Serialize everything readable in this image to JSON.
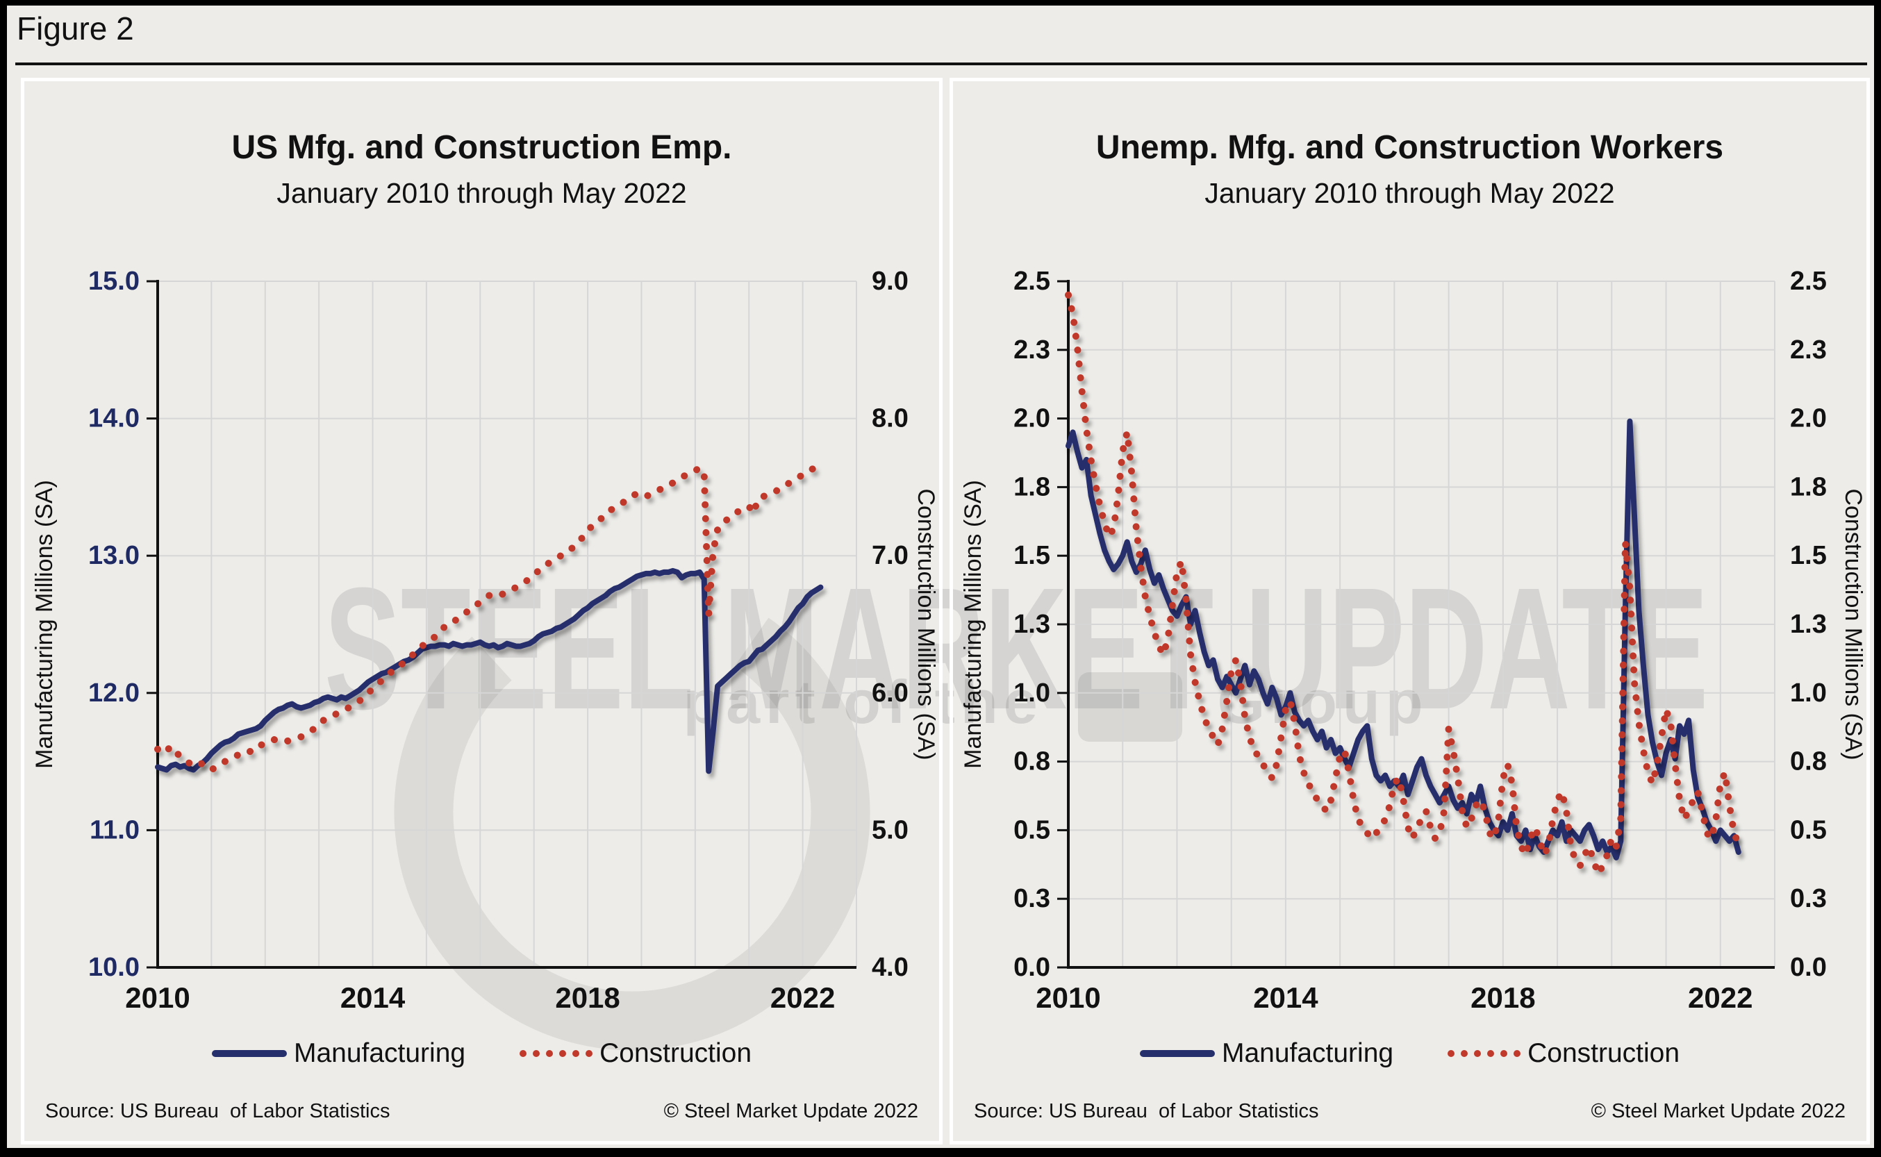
{
  "figure_label": "Figure 2",
  "watermark": {
    "line1": "STEEL MARKET UPDATE",
    "line2_prefix": "part of the",
    "line2_suffix": "Group"
  },
  "colors": {
    "manufacturing_navy": "#252F6C",
    "construction_red": "#C0392B",
    "axis_black": "#111111",
    "gridline_gray": "#D6D6D6",
    "navy_tick_label": "#1F2A63",
    "page_background": "#EDECE9"
  },
  "chart_data": [
    {
      "type": "line",
      "title": "US Mfg. and Construction Emp.",
      "subtitle": "January 2010 through May 2022",
      "x_start_year": 2010,
      "x_points_per_year": 12,
      "x_range": [
        2010,
        2023
      ],
      "x_tick_values": [
        2010,
        2014,
        2018,
        2022
      ],
      "x_tick_labels": [
        "2010",
        "2014",
        "2018",
        "2022"
      ],
      "left_axis": {
        "title": "Manufacturing Millions (SA)",
        "range": [
          10.0,
          15.0
        ],
        "tick_values": [
          10,
          11,
          12,
          13,
          14,
          15
        ],
        "tick_labels": [
          "10.0",
          "11.0",
          "12.0",
          "13.0",
          "14.0",
          "15.0"
        ],
        "label_color": "#1F2A63"
      },
      "right_axis": {
        "title": "Construction Millions (SA)",
        "range": [
          4.0,
          9.0
        ],
        "tick_values": [
          4,
          5,
          6,
          7,
          8,
          9
        ],
        "tick_labels": [
          "4.0",
          "5.0",
          "6.0",
          "7.0",
          "8.0",
          "9.0"
        ],
        "label_color": "#111111"
      },
      "legend": [
        "Manufacturing",
        "Construction"
      ],
      "source": "Source: US Bureau  of Labor Statistics",
      "copyright": "© Steel Market Update 2022",
      "series": [
        {
          "name": "Manufacturing",
          "axis": "left",
          "style": "solid",
          "color": "#252F6C",
          "values": [
            11.46,
            11.45,
            11.44,
            11.47,
            11.48,
            11.46,
            11.47,
            11.45,
            11.44,
            11.47,
            11.49,
            11.52,
            11.56,
            11.59,
            11.62,
            11.64,
            11.65,
            11.67,
            11.7,
            11.71,
            11.72,
            11.73,
            11.74,
            11.76,
            11.8,
            11.83,
            11.86,
            11.88,
            11.89,
            11.91,
            11.92,
            11.9,
            11.89,
            11.9,
            11.91,
            11.93,
            11.94,
            11.96,
            11.97,
            11.96,
            11.95,
            11.97,
            11.96,
            11.98,
            12.0,
            12.02,
            12.05,
            12.08,
            12.1,
            12.12,
            12.14,
            12.15,
            12.17,
            12.19,
            12.21,
            12.23,
            12.24,
            12.26,
            12.29,
            12.32,
            12.33,
            12.34,
            12.34,
            12.35,
            12.35,
            12.34,
            12.36,
            12.35,
            12.34,
            12.35,
            12.35,
            12.36,
            12.37,
            12.35,
            12.34,
            12.35,
            12.33,
            12.34,
            12.36,
            12.35,
            12.34,
            12.34,
            12.35,
            12.36,
            12.38,
            12.41,
            12.43,
            12.44,
            12.45,
            12.47,
            12.48,
            12.5,
            12.52,
            12.54,
            12.57,
            12.6,
            12.62,
            12.65,
            12.67,
            12.69,
            12.71,
            12.74,
            12.76,
            12.77,
            12.79,
            12.81,
            12.83,
            12.85,
            12.86,
            12.87,
            12.87,
            12.88,
            12.87,
            12.88,
            12.88,
            12.89,
            12.88,
            12.84,
            12.86,
            12.87,
            12.87,
            12.88,
            12.83,
            11.43,
            11.72,
            12.05,
            12.08,
            12.11,
            12.14,
            12.17,
            12.2,
            12.22,
            12.23,
            12.27,
            12.31,
            12.32,
            12.35,
            12.38,
            12.41,
            12.45,
            12.48,
            12.52,
            12.57,
            12.62,
            12.65,
            12.7,
            12.73,
            12.75,
            12.77
          ]
        },
        {
          "name": "Construction",
          "axis": "right",
          "style": "dotted",
          "color": "#C0392B",
          "values": [
            5.59,
            5.56,
            5.58,
            5.61,
            5.57,
            5.54,
            5.51,
            5.49,
            5.48,
            5.5,
            5.48,
            5.45,
            5.44,
            5.46,
            5.48,
            5.5,
            5.52,
            5.53,
            5.55,
            5.57,
            5.58,
            5.57,
            5.6,
            5.62,
            5.63,
            5.65,
            5.66,
            5.65,
            5.64,
            5.65,
            5.66,
            5.67,
            5.68,
            5.7,
            5.72,
            5.74,
            5.77,
            5.8,
            5.82,
            5.83,
            5.85,
            5.87,
            5.88,
            5.9,
            5.92,
            5.94,
            5.97,
            6.0,
            6.03,
            6.06,
            6.09,
            6.12,
            6.15,
            6.17,
            6.2,
            6.22,
            6.25,
            6.28,
            6.31,
            6.34,
            6.37,
            6.39,
            6.41,
            6.45,
            6.48,
            6.49,
            6.52,
            6.54,
            6.56,
            6.59,
            6.61,
            6.64,
            6.66,
            6.68,
            6.71,
            6.72,
            6.71,
            6.72,
            6.74,
            6.75,
            6.77,
            6.79,
            6.81,
            6.83,
            6.86,
            6.89,
            6.92,
            6.94,
            6.96,
            6.98,
            7.0,
            7.02,
            7.04,
            7.07,
            7.1,
            7.14,
            7.18,
            7.22,
            7.24,
            7.27,
            7.31,
            7.33,
            7.35,
            7.37,
            7.39,
            7.42,
            7.44,
            7.45,
            7.45,
            7.43,
            7.45,
            7.47,
            7.48,
            7.5,
            7.52,
            7.53,
            7.55,
            7.57,
            7.59,
            7.61,
            7.62,
            7.64,
            7.6,
            6.57,
            7.03,
            7.19,
            7.24,
            7.26,
            7.29,
            7.31,
            7.33,
            7.34,
            7.36,
            7.31,
            7.41,
            7.43,
            7.44,
            7.45,
            7.47,
            7.49,
            7.51,
            7.53,
            7.55,
            7.57,
            7.59,
            7.61,
            7.63,
            7.64,
            7.66
          ]
        }
      ]
    },
    {
      "type": "line",
      "title": "Unemp. Mfg. and Construction Workers",
      "subtitle": "January 2010 through May 2022",
      "x_start_year": 2010,
      "x_points_per_year": 12,
      "x_range": [
        2010,
        2023
      ],
      "x_tick_values": [
        2010,
        2014,
        2018,
        2022
      ],
      "x_tick_labels": [
        "2010",
        "2014",
        "2018",
        "2022"
      ],
      "left_axis": {
        "title": "Manufacturing Millions (SA)",
        "range": [
          0.0,
          2.5
        ],
        "tick_values": [
          0,
          0.25,
          0.5,
          0.75,
          1.0,
          1.25,
          1.5,
          1.75,
          2.0,
          2.25,
          2.5
        ],
        "tick_labels": [
          "0.0",
          "0.3",
          "0.5",
          "0.8",
          "1.0",
          "1.3",
          "1.5",
          "1.8",
          "2.0",
          "2.3",
          "2.5"
        ],
        "label_color": "#111111"
      },
      "right_axis": {
        "title": "Construction Millions (SA)",
        "range": [
          0.0,
          2.5
        ],
        "tick_values": [
          0,
          0.25,
          0.5,
          0.75,
          1.0,
          1.25,
          1.5,
          1.75,
          2.0,
          2.25,
          2.5
        ],
        "tick_labels": [
          "0.0",
          "0.3",
          "0.5",
          "0.8",
          "1.0",
          "1.3",
          "1.5",
          "1.8",
          "2.0",
          "2.3",
          "2.5"
        ],
        "label_color": "#111111"
      },
      "legend": [
        "Manufacturing",
        "Construction"
      ],
      "source": "Source: US Bureau  of Labor Statistics",
      "copyright": "© Steel Market Update 2022",
      "series": [
        {
          "name": "Manufacturing",
          "axis": "left",
          "style": "solid",
          "color": "#252F6C",
          "values": [
            1.9,
            1.95,
            1.88,
            1.82,
            1.85,
            1.72,
            1.65,
            1.58,
            1.52,
            1.48,
            1.45,
            1.47,
            1.5,
            1.55,
            1.48,
            1.44,
            1.47,
            1.52,
            1.45,
            1.4,
            1.43,
            1.38,
            1.34,
            1.3,
            1.28,
            1.32,
            1.35,
            1.25,
            1.3,
            1.22,
            1.15,
            1.1,
            1.12,
            1.05,
            1.02,
            1.06,
            1.03,
            1.0,
            1.05,
            1.1,
            1.03,
            1.08,
            1.05,
            1.0,
            0.96,
            1.02,
            0.98,
            0.92,
            0.95,
            1.0,
            0.93,
            0.9,
            0.88,
            0.9,
            0.86,
            0.83,
            0.86,
            0.8,
            0.83,
            0.78,
            0.8,
            0.76,
            0.73,
            0.78,
            0.83,
            0.86,
            0.88,
            0.76,
            0.7,
            0.68,
            0.7,
            0.66,
            0.68,
            0.66,
            0.7,
            0.63,
            0.68,
            0.73,
            0.76,
            0.7,
            0.66,
            0.63,
            0.6,
            0.63,
            0.66,
            0.61,
            0.58,
            0.6,
            0.56,
            0.63,
            0.6,
            0.66,
            0.58,
            0.53,
            0.5,
            0.48,
            0.53,
            0.5,
            0.56,
            0.48,
            0.46,
            0.5,
            0.43,
            0.48,
            0.44,
            0.42,
            0.46,
            0.5,
            0.48,
            0.53,
            0.46,
            0.5,
            0.48,
            0.46,
            0.5,
            0.52,
            0.48,
            0.43,
            0.46,
            0.42,
            0.44,
            0.4,
            0.46,
            1.3,
            1.99,
            1.65,
            1.3,
            1.1,
            0.92,
            0.82,
            0.75,
            0.7,
            0.78,
            0.83,
            0.76,
            0.88,
            0.85,
            0.9,
            0.72,
            0.62,
            0.58,
            0.53,
            0.5,
            0.46,
            0.5,
            0.48,
            0.46,
            0.48,
            0.42
          ]
        },
        {
          "name": "Construction",
          "axis": "right",
          "style": "dotted",
          "color": "#C0392B",
          "values": [
            2.45,
            2.38,
            2.26,
            2.1,
            1.96,
            1.85,
            1.76,
            1.68,
            1.62,
            1.57,
            1.6,
            1.72,
            1.88,
            1.95,
            1.8,
            1.6,
            1.46,
            1.35,
            1.28,
            1.22,
            1.17,
            1.14,
            1.2,
            1.32,
            1.44,
            1.48,
            1.34,
            1.14,
            1.04,
            0.97,
            0.91,
            0.87,
            0.84,
            0.81,
            0.87,
            0.97,
            1.08,
            1.12,
            1.04,
            0.91,
            0.84,
            0.79,
            0.77,
            0.74,
            0.71,
            0.69,
            0.74,
            0.84,
            0.94,
            0.97,
            0.89,
            0.77,
            0.71,
            0.67,
            0.64,
            0.61,
            0.59,
            0.57,
            0.61,
            0.69,
            0.77,
            0.79,
            0.71,
            0.61,
            0.54,
            0.51,
            0.49,
            0.47,
            0.49,
            0.51,
            0.54,
            0.59,
            0.67,
            0.69,
            0.61,
            0.51,
            0.47,
            0.51,
            0.54,
            0.57,
            0.51,
            0.47,
            0.49,
            0.57,
            0.87,
            0.79,
            0.69,
            0.57,
            0.51,
            0.54,
            0.59,
            0.61,
            0.57,
            0.49,
            0.47,
            0.54,
            0.69,
            0.74,
            0.67,
            0.51,
            0.44,
            0.41,
            0.47,
            0.51,
            0.47,
            0.41,
            0.44,
            0.54,
            0.61,
            0.64,
            0.57,
            0.44,
            0.39,
            0.37,
            0.41,
            0.44,
            0.39,
            0.34,
            0.37,
            0.41,
            0.47,
            0.44,
            0.54,
            1.55,
            1.38,
            1.04,
            0.89,
            0.79,
            0.71,
            0.67,
            0.74,
            0.84,
            0.94,
            0.89,
            0.74,
            0.61,
            0.54,
            0.57,
            0.61,
            0.64,
            0.57,
            0.49,
            0.47,
            0.54,
            0.67,
            0.71,
            0.59,
            0.49,
            0.45
          ]
        }
      ]
    }
  ]
}
